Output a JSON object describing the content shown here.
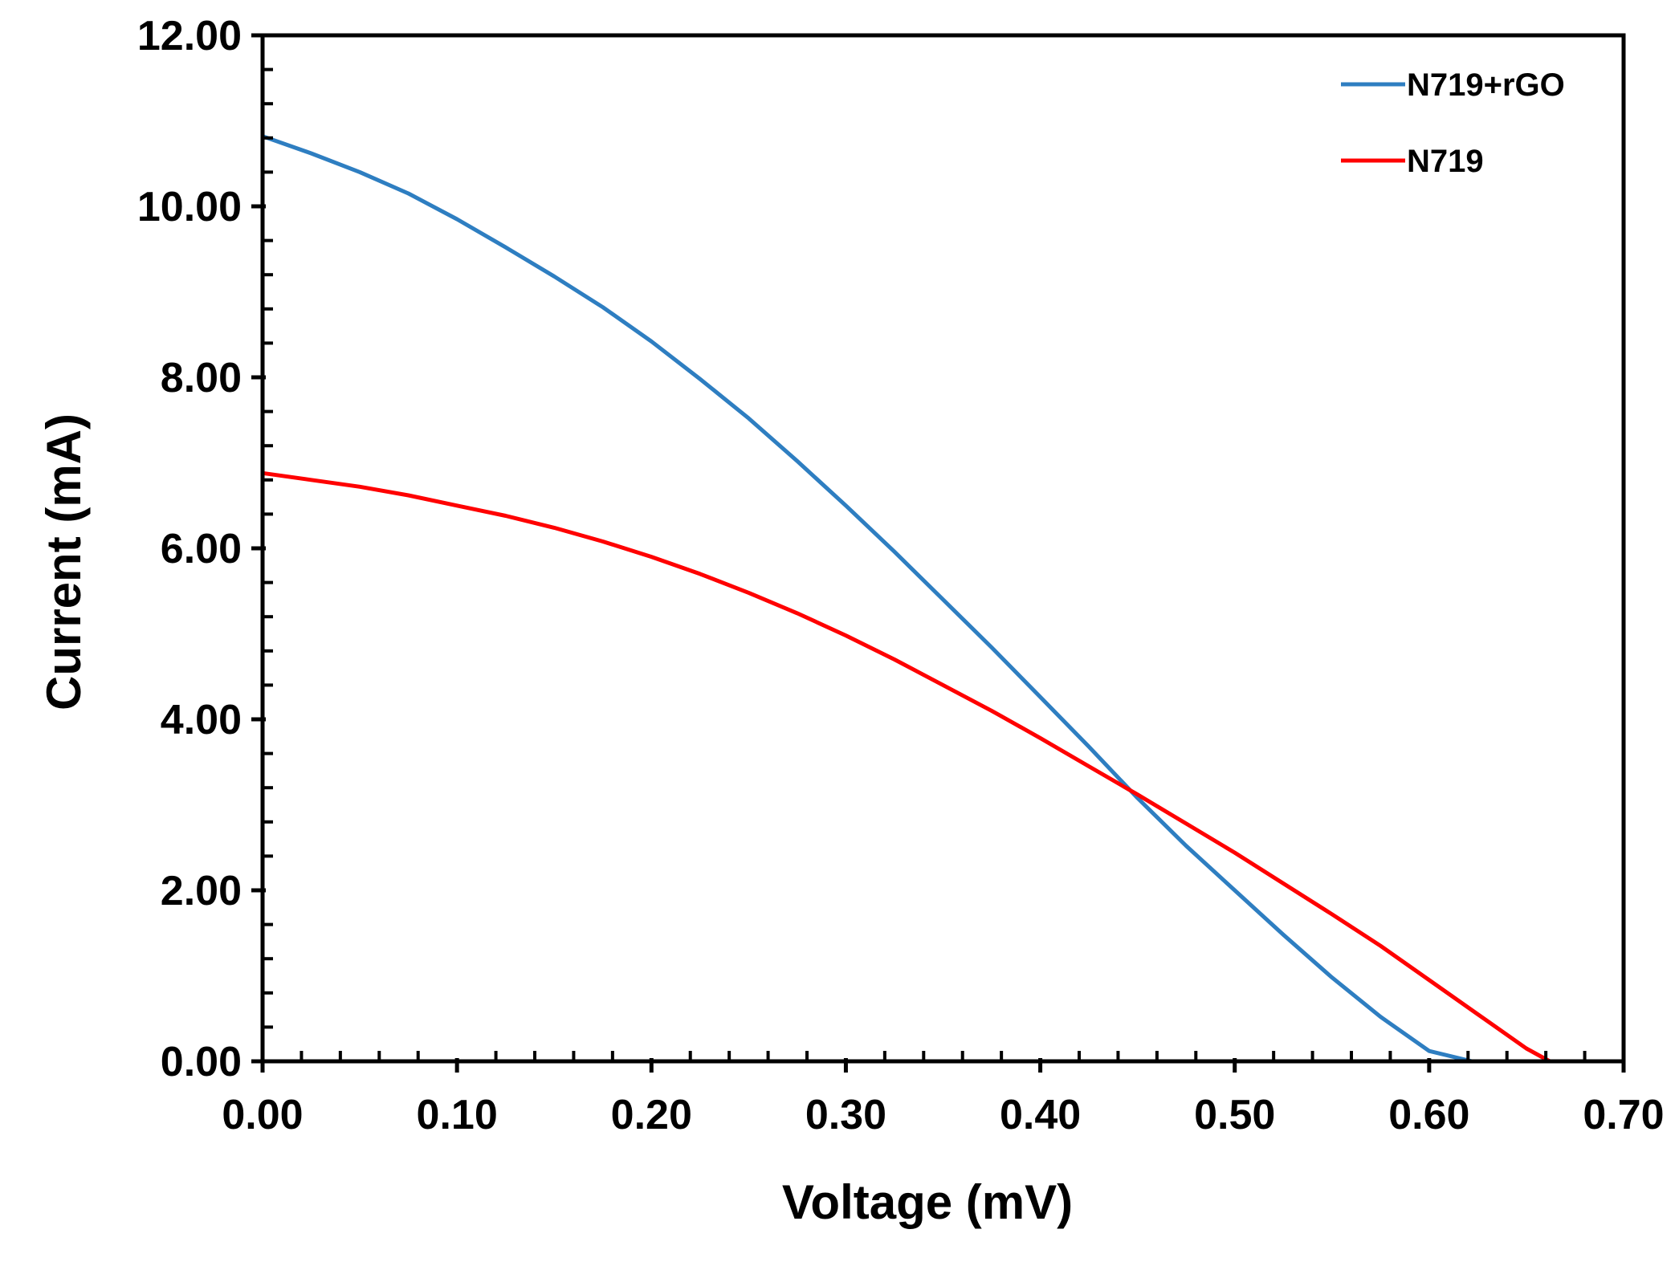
{
  "chart_data": {
    "type": "line",
    "title": "",
    "xlabel": "Voltage (mV)",
    "ylabel": "Current (mA)",
    "xlim": [
      0,
      0.7
    ],
    "ylim": [
      0,
      12
    ],
    "x_ticks": [
      "0.00",
      "0.10",
      "0.20",
      "0.30",
      "0.40",
      "0.50",
      "0.60",
      "0.70"
    ],
    "y_ticks": [
      "0.00",
      "2.00",
      "4.00",
      "6.00",
      "8.00",
      "10.00",
      "12.00"
    ],
    "x_minor_step": 0.02,
    "y_minor_step": 0.4,
    "grid": false,
    "legend_position": "top-right",
    "series": [
      {
        "name": "N719+rGO",
        "color": "#2E7EC1",
        "x": [
          0.0,
          0.025,
          0.05,
          0.075,
          0.1,
          0.125,
          0.15,
          0.175,
          0.2,
          0.225,
          0.25,
          0.275,
          0.3,
          0.325,
          0.35,
          0.375,
          0.4,
          0.425,
          0.45,
          0.475,
          0.5,
          0.525,
          0.55,
          0.575,
          0.6,
          0.622
        ],
        "y": [
          10.82,
          10.62,
          10.4,
          10.15,
          9.85,
          9.52,
          9.18,
          8.82,
          8.42,
          7.98,
          7.52,
          7.02,
          6.5,
          5.96,
          5.4,
          4.84,
          4.26,
          3.68,
          3.08,
          2.52,
          2.0,
          1.48,
          0.98,
          0.52,
          0.12,
          0.0
        ]
      },
      {
        "name": "N719",
        "color": "#FF0000",
        "x": [
          0.0,
          0.025,
          0.05,
          0.075,
          0.1,
          0.125,
          0.15,
          0.175,
          0.2,
          0.225,
          0.25,
          0.275,
          0.3,
          0.325,
          0.35,
          0.375,
          0.4,
          0.425,
          0.45,
          0.475,
          0.5,
          0.525,
          0.55,
          0.575,
          0.6,
          0.625,
          0.65,
          0.662
        ],
        "y": [
          6.88,
          6.8,
          6.72,
          6.62,
          6.5,
          6.38,
          6.24,
          6.08,
          5.9,
          5.7,
          5.48,
          5.24,
          4.98,
          4.7,
          4.4,
          4.1,
          3.78,
          3.45,
          3.12,
          2.78,
          2.44,
          2.08,
          1.72,
          1.35,
          0.95,
          0.55,
          0.15,
          0.0
        ]
      }
    ]
  }
}
